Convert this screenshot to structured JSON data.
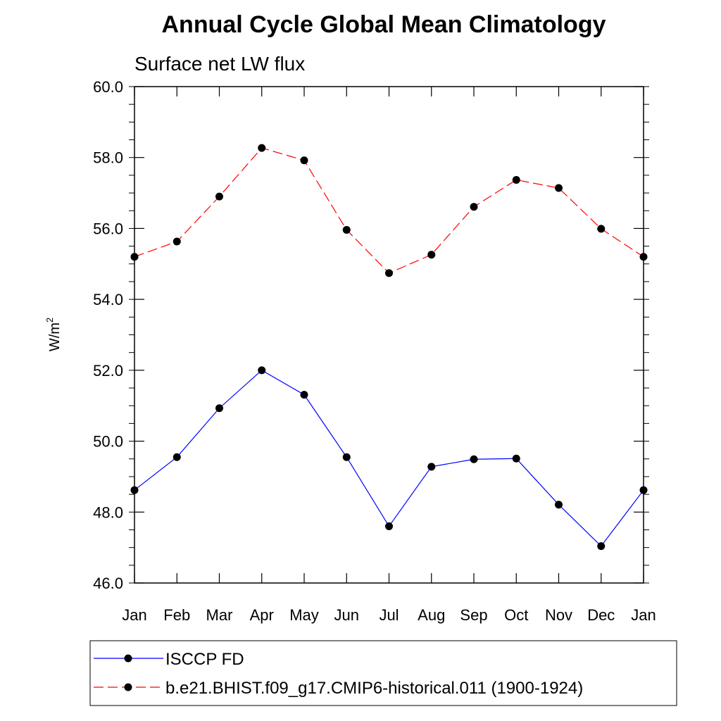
{
  "chart_data": {
    "type": "line",
    "title": "Annual Cycle Global Mean Climatology",
    "subtitle": "Surface net LW flux",
    "ylabel": "W/m",
    "ylabel_superscript": "2",
    "xlabel": "",
    "categories": [
      "Jan",
      "Feb",
      "Mar",
      "Apr",
      "May",
      "Jun",
      "Jul",
      "Aug",
      "Sep",
      "Oct",
      "Nov",
      "Dec",
      "Jan"
    ],
    "ylim": [
      46.0,
      60.0
    ],
    "yticks": [
      "46.0",
      "48.0",
      "50.0",
      "52.0",
      "54.0",
      "56.0",
      "58.0",
      "60.0"
    ],
    "grid": false,
    "legend_position": "bottom",
    "series": [
      {
        "name": "ISCCP FD",
        "color": "#0000ff",
        "line_style": "solid",
        "marker": "filled-circle",
        "values": [
          48.62,
          49.55,
          50.93,
          52.0,
          51.31,
          49.55,
          47.6,
          49.28,
          49.49,
          49.51,
          48.21,
          47.04,
          48.62
        ]
      },
      {
        "name": "b.e21.BHIST.f09_g17.CMIP6-historical.011 (1900-1924)",
        "color": "#ff0000",
        "line_style": "dashed",
        "marker": "filled-circle",
        "values": [
          55.2,
          55.63,
          56.9,
          58.27,
          57.92,
          55.96,
          54.74,
          55.26,
          56.61,
          57.37,
          57.14,
          55.99,
          55.2
        ]
      }
    ]
  }
}
